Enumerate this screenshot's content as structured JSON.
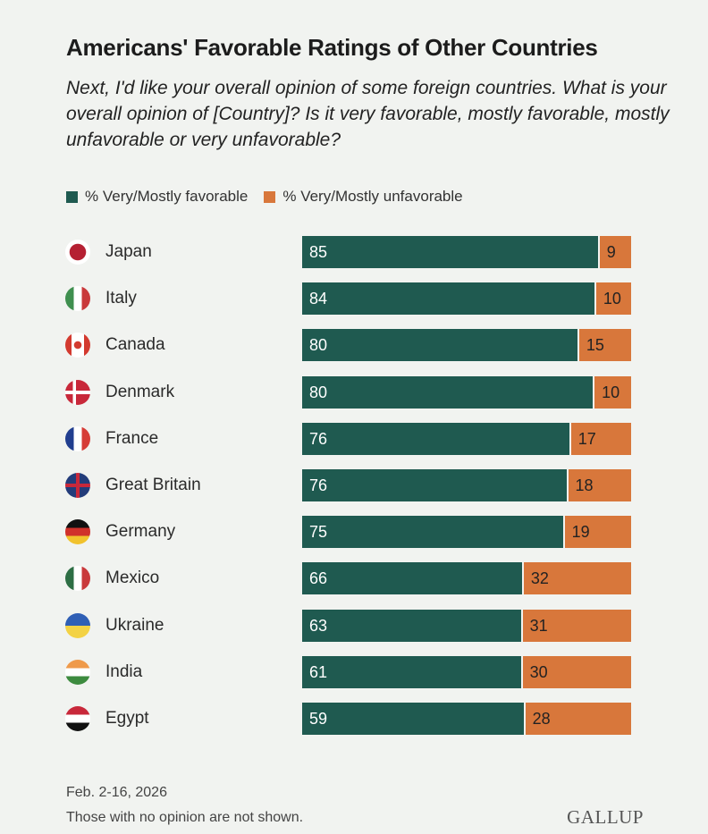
{
  "chart_data": {
    "type": "bar",
    "stacked": true,
    "orientation": "horizontal",
    "title": "Americans' Favorable Ratings of Other Countries",
    "subtitle": "Next, I'd like your overall opinion of some foreign countries. What is your overall opinion of [Country]? Is it very favorable, mostly favorable, mostly unfavorable or very unfavorable?",
    "legend": [
      "% Very/Mostly favorable",
      "% Very/Mostly unfavorable"
    ],
    "legend_position": "top-left",
    "colors": {
      "favorable": "#1f5a50",
      "unfavorable": "#d8773b"
    },
    "categories": [
      "Japan",
      "Italy",
      "Canada",
      "Denmark",
      "France",
      "Great Britain",
      "Germany",
      "Mexico",
      "Ukraine",
      "India",
      "Egypt"
    ],
    "series": [
      {
        "name": "% Very/Mostly favorable",
        "values": [
          85,
          84,
          80,
          80,
          76,
          76,
          75,
          66,
          63,
          61,
          59
        ]
      },
      {
        "name": "% Very/Mostly unfavorable",
        "values": [
          9,
          10,
          15,
          10,
          17,
          18,
          19,
          32,
          31,
          30,
          28
        ]
      }
    ],
    "flags": {
      "Japan": {
        "type": "japan",
        "colors": [
          "#ffffff",
          "#b52032"
        ]
      },
      "Italy": {
        "type": "v",
        "colors": [
          "#3f8f4f",
          "#ffffff",
          "#c9393b"
        ]
      },
      "Canada": {
        "type": "canada",
        "colors": [
          "#d33a2f",
          "#ffffff",
          "#d33a2f"
        ]
      },
      "Denmark": {
        "type": "denmark",
        "colors": [
          "#c8283a",
          "#ffffff"
        ]
      },
      "France": {
        "type": "v",
        "colors": [
          "#213e8f",
          "#ffffff",
          "#d63c37"
        ]
      },
      "Great Britain": {
        "type": "uk",
        "colors": [
          "#233c7a",
          "#ffffff",
          "#c8283a"
        ]
      },
      "Germany": {
        "type": "h",
        "colors": [
          "#111111",
          "#d0302b",
          "#f1c22d"
        ]
      },
      "Mexico": {
        "type": "v",
        "colors": [
          "#2d6e44",
          "#ffffff",
          "#c9393b"
        ]
      },
      "Ukraine": {
        "type": "h",
        "colors": [
          "#2f5fb5",
          "#f3d245"
        ]
      },
      "India": {
        "type": "h",
        "colors": [
          "#ef9a4a",
          "#ffffff",
          "#3d8b3f"
        ]
      },
      "Egypt": {
        "type": "h",
        "colors": [
          "#c8283a",
          "#ffffff",
          "#111111"
        ]
      }
    }
  },
  "footer": {
    "date": "Feb. 2-16, 2026",
    "note": "Those with no opinion are not shown.",
    "logo": "GALLUP"
  }
}
